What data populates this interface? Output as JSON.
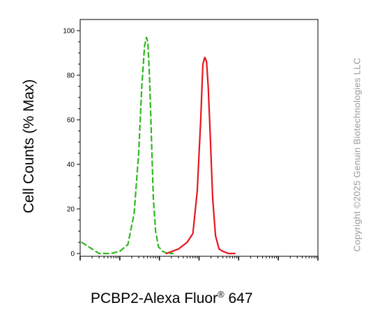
{
  "chart_data": {
    "type": "line",
    "title": "",
    "xlabel": "PCBP2-Alexa Fluor",
    "xlabel_mark": "®",
    "xlabel_suffix": " 647",
    "ylabel": "Cell Counts (% Max)",
    "ylim": [
      0,
      100
    ],
    "yticks": [
      "0",
      "20",
      "40",
      "60",
      "80",
      "100"
    ],
    "x_scale": "log",
    "xlim": [
      10,
      10000000
    ],
    "grid": false,
    "series": [
      {
        "style": "dashed",
        "color": "#2db81e",
        "x": [
          11,
          30,
          60,
          100,
          160,
          230,
          300,
          360,
          420,
          470,
          510,
          560,
          620,
          700,
          800,
          950,
          1200,
          1600,
          2200
        ],
        "y": [
          5,
          0,
          0,
          1,
          4,
          18,
          45,
          75,
          93,
          97,
          95,
          80,
          55,
          25,
          10,
          3,
          1,
          0,
          0
        ]
      },
      {
        "style": "solid",
        "color": "#e8141e",
        "x": [
          1500,
          3000,
          5000,
          7000,
          9000,
          11000,
          12500,
          14000,
          15500,
          17000,
          19000,
          22000,
          26000,
          32000,
          40000,
          55000,
          80000
        ],
        "y": [
          0,
          2,
          5,
          9,
          28,
          60,
          85,
          88,
          86,
          75,
          55,
          25,
          8,
          2,
          1,
          0,
          0
        ]
      }
    ]
  },
  "copyright": "Copyright ©2025 Genuin Biotechnologies LLC",
  "colors": {
    "axis": "#000000",
    "copyright": "#999999"
  }
}
